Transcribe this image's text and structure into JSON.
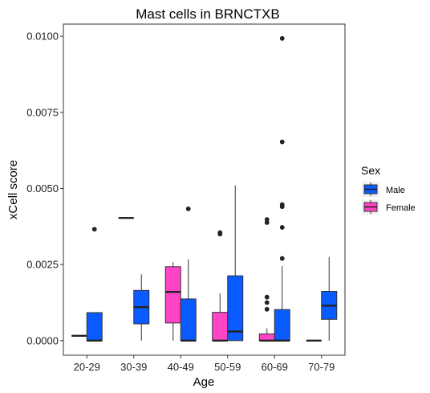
{
  "chart_data": {
    "type": "boxplot",
    "title": "Mast cells in BRNCTXB",
    "xlabel": "Age",
    "ylabel": "xCell score",
    "categories": [
      "20-29",
      "30-39",
      "40-49",
      "50-59",
      "60-69",
      "70-79"
    ],
    "ylim": [
      -0.00048,
      0.0104
    ],
    "yticks": [
      0.0,
      0.0025,
      0.005,
      0.0075,
      0.01
    ],
    "ytick_labels": [
      "0.0000",
      "0.0025",
      "0.0050",
      "0.0075",
      "0.0100"
    ],
    "grid": false,
    "legend": {
      "title": "Sex",
      "position": "right",
      "entries": [
        {
          "label": "Male",
          "color": "#0a5bff"
        },
        {
          "label": "Female",
          "color": "#ff44c6"
        }
      ]
    },
    "boxes": [
      {
        "category": "20-29",
        "sex": "Female",
        "min": 0.00016,
        "q1": 0.00016,
        "median": 0.00016,
        "q3": 0.00016,
        "max": 0.00016,
        "outliers": []
      },
      {
        "category": "20-29",
        "sex": "Male",
        "min": 0.0,
        "q1": 0.0,
        "median": 0.0,
        "q3": 0.00092,
        "max": 0.00092,
        "outliers": [
          0.00366
        ]
      },
      {
        "category": "30-39",
        "sex": "Female",
        "min": 0.00403,
        "q1": 0.00403,
        "median": 0.00403,
        "q3": 0.00403,
        "max": 0.00403,
        "outliers": []
      },
      {
        "category": "30-39",
        "sex": "Male",
        "min": 0.0,
        "q1": 0.00055,
        "median": 0.0011,
        "q3": 0.00165,
        "max": 0.00218,
        "outliers": []
      },
      {
        "category": "40-49",
        "sex": "Female",
        "min": 0.0,
        "q1": 0.00058,
        "median": 0.0016,
        "q3": 0.00243,
        "max": 0.00258,
        "outliers": []
      },
      {
        "category": "40-49",
        "sex": "Male",
        "min": 0.0,
        "q1": 0.0,
        "median": 0.0,
        "q3": 0.00137,
        "max": 0.00267,
        "outliers": [
          0.00433
        ]
      },
      {
        "category": "50-59",
        "sex": "Female",
        "min": 0.0,
        "q1": 0.0,
        "median": 0.0,
        "q3": 0.00093,
        "max": 0.00155,
        "outliers": [
          0.0035,
          0.00355
        ]
      },
      {
        "category": "50-59",
        "sex": "Male",
        "min": 0.0,
        "q1": 0.0,
        "median": 0.0003,
        "q3": 0.00213,
        "max": 0.0051,
        "outliers": []
      },
      {
        "category": "60-69",
        "sex": "Female",
        "min": 0.0,
        "q1": 0.0,
        "median": 0.0,
        "q3": 0.00022,
        "max": 0.0004,
        "outliers": [
          0.00103,
          0.00125,
          0.00143,
          0.00388,
          0.00398
        ]
      },
      {
        "category": "60-69",
        "sex": "Male",
        "min": 0.0,
        "q1": 0.0,
        "median": 0.0,
        "q3": 0.00102,
        "max": 0.00245,
        "outliers": [
          0.0027,
          0.00372,
          0.0044,
          0.00447,
          0.00653,
          0.00993
        ]
      },
      {
        "category": "70-79",
        "sex": "Female",
        "min": 0.0,
        "q1": 0.0,
        "median": 0.0,
        "q3": 0.0,
        "max": 0.0,
        "outliers": []
      },
      {
        "category": "70-79",
        "sex": "Male",
        "min": 0.0,
        "q1": 0.0007,
        "median": 0.00115,
        "q3": 0.00162,
        "max": 0.00275,
        "outliers": []
      }
    ]
  }
}
